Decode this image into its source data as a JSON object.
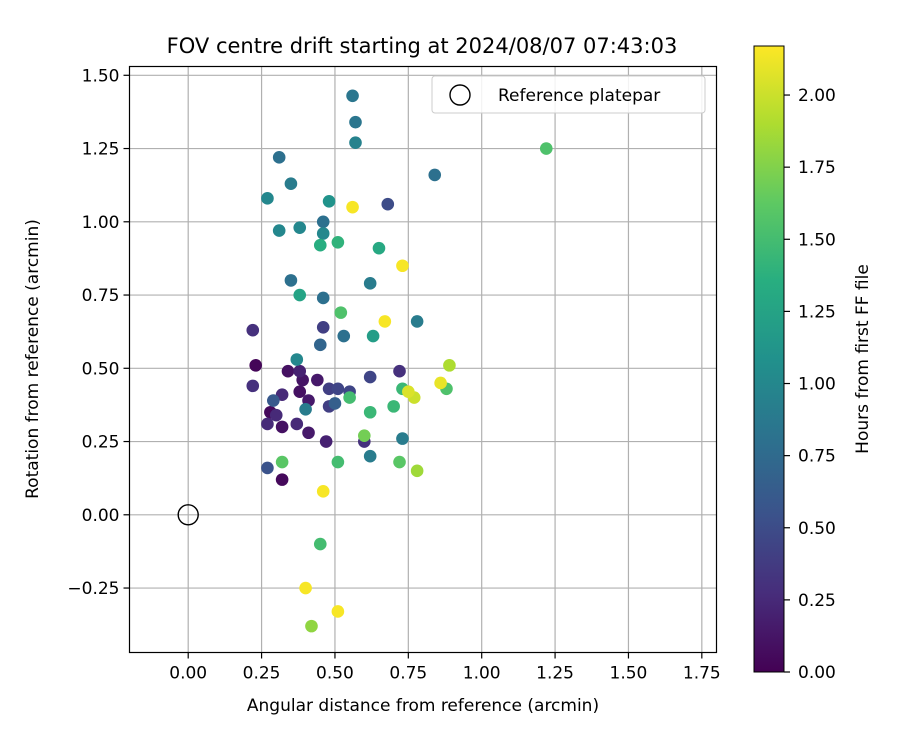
{
  "chart_data": {
    "type": "scatter",
    "title": "FOV centre drift starting at 2024/08/07 07:43:03",
    "xlabel": "Angular distance from reference (arcmin)",
    "ylabel": "Rotation from reference (arcmin)",
    "xlim": [
      -0.2,
      1.8
    ],
    "ylim": [
      -0.47,
      1.53
    ],
    "xticks": [
      "0.00",
      "0.25",
      "0.50",
      "0.75",
      "1.00",
      "1.25",
      "1.50",
      "1.75"
    ],
    "xtick_values": [
      0,
      0.25,
      0.5,
      0.75,
      1.0,
      1.25,
      1.5,
      1.75
    ],
    "yticks": [
      "−0.25",
      "0.00",
      "0.25",
      "0.50",
      "0.75",
      "1.00",
      "1.25",
      "1.50"
    ],
    "ytick_values": [
      -0.25,
      0,
      0.25,
      0.5,
      0.75,
      1.0,
      1.25,
      1.5
    ],
    "grid": true,
    "legend": {
      "position": "top-right",
      "entries": [
        "Reference platepar"
      ]
    },
    "reference_point": {
      "x": 0.0,
      "y": 0.0
    },
    "colorbar": {
      "label": "Hours from first FF file",
      "colormap": "viridis",
      "range": [
        0,
        2.17
      ],
      "ticks": [
        "0.00",
        "0.25",
        "0.50",
        "0.75",
        "1.00",
        "1.25",
        "1.50",
        "1.75",
        "2.00"
      ],
      "tick_values": [
        0,
        0.25,
        0.5,
        0.75,
        1.0,
        1.25,
        1.5,
        1.75,
        2.0
      ]
    },
    "points": [
      {
        "x": 0.23,
        "y": 0.51,
        "c": 0.03
      },
      {
        "x": 0.28,
        "y": 0.35,
        "c": 0.05
      },
      {
        "x": 0.32,
        "y": 0.12,
        "c": 0.05
      },
      {
        "x": 0.32,
        "y": 0.3,
        "c": 0.1
      },
      {
        "x": 0.34,
        "y": 0.49,
        "c": 0.1
      },
      {
        "x": 0.38,
        "y": 0.42,
        "c": 0.1
      },
      {
        "x": 0.39,
        "y": 0.46,
        "c": 0.12
      },
      {
        "x": 0.41,
        "y": 0.39,
        "c": 0.15
      },
      {
        "x": 0.41,
        "y": 0.28,
        "c": 0.15
      },
      {
        "x": 0.44,
        "y": 0.46,
        "c": 0.15
      },
      {
        "x": 0.38,
        "y": 0.49,
        "c": 0.2
      },
      {
        "x": 0.47,
        "y": 0.25,
        "c": 0.2
      },
      {
        "x": 0.27,
        "y": 0.31,
        "c": 0.25
      },
      {
        "x": 0.3,
        "y": 0.34,
        "c": 0.25
      },
      {
        "x": 0.32,
        "y": 0.41,
        "c": 0.25
      },
      {
        "x": 0.37,
        "y": 0.31,
        "c": 0.25
      },
      {
        "x": 0.22,
        "y": 0.63,
        "c": 0.3
      },
      {
        "x": 0.22,
        "y": 0.44,
        "c": 0.3
      },
      {
        "x": 0.6,
        "y": 0.25,
        "c": 0.3
      },
      {
        "x": 0.72,
        "y": 0.49,
        "c": 0.3
      },
      {
        "x": 0.46,
        "y": 0.64,
        "c": 0.4
      },
      {
        "x": 0.48,
        "y": 0.37,
        "c": 0.4
      },
      {
        "x": 0.48,
        "y": 0.43,
        "c": 0.4
      },
      {
        "x": 0.51,
        "y": 0.43,
        "c": 0.45
      },
      {
        "x": 0.55,
        "y": 0.42,
        "c": 0.45
      },
      {
        "x": 0.62,
        "y": 0.47,
        "c": 0.45
      },
      {
        "x": 0.68,
        "y": 1.06,
        "c": 0.5
      },
      {
        "x": 0.27,
        "y": 0.16,
        "c": 0.55
      },
      {
        "x": 0.29,
        "y": 0.39,
        "c": 0.6
      },
      {
        "x": 0.45,
        "y": 0.58,
        "c": 0.7
      },
      {
        "x": 0.5,
        "y": 0.38,
        "c": 0.65
      },
      {
        "x": 0.31,
        "y": 1.22,
        "c": 0.8
      },
      {
        "x": 0.46,
        "y": 1.0,
        "c": 0.8
      },
      {
        "x": 0.35,
        "y": 0.8,
        "c": 0.8
      },
      {
        "x": 0.46,
        "y": 0.74,
        "c": 0.8
      },
      {
        "x": 0.53,
        "y": 0.61,
        "c": 0.8
      },
      {
        "x": 0.84,
        "y": 1.16,
        "c": 0.8
      },
      {
        "x": 0.56,
        "y": 1.43,
        "c": 0.85
      },
      {
        "x": 0.57,
        "y": 1.34,
        "c": 0.85
      },
      {
        "x": 0.35,
        "y": 1.13,
        "c": 0.9
      },
      {
        "x": 0.4,
        "y": 0.36,
        "c": 0.9
      },
      {
        "x": 0.62,
        "y": 0.2,
        "c": 0.9
      },
      {
        "x": 0.73,
        "y": 0.26,
        "c": 0.9
      },
      {
        "x": 0.78,
        "y": 0.66,
        "c": 0.9
      },
      {
        "x": 0.62,
        "y": 0.79,
        "c": 0.9
      },
      {
        "x": 0.57,
        "y": 1.27,
        "c": 0.95
      },
      {
        "x": 0.27,
        "y": 1.08,
        "c": 1.0
      },
      {
        "x": 0.31,
        "y": 0.97,
        "c": 1.0
      },
      {
        "x": 0.38,
        "y": 0.98,
        "c": 1.0
      },
      {
        "x": 0.37,
        "y": 0.53,
        "c": 1.0
      },
      {
        "x": 0.46,
        "y": 0.96,
        "c": 1.0
      },
      {
        "x": 0.48,
        "y": 1.07,
        "c": 1.1
      },
      {
        "x": 0.63,
        "y": 0.61,
        "c": 1.2
      },
      {
        "x": 0.38,
        "y": 0.75,
        "c": 1.25
      },
      {
        "x": 0.65,
        "y": 0.91,
        "c": 1.3
      },
      {
        "x": 0.45,
        "y": 0.92,
        "c": 1.35
      },
      {
        "x": 0.51,
        "y": 0.93,
        "c": 1.4
      },
      {
        "x": 0.62,
        "y": 0.35,
        "c": 1.45
      },
      {
        "x": 0.7,
        "y": 0.37,
        "c": 1.45
      },
      {
        "x": 0.73,
        "y": 0.43,
        "c": 1.45
      },
      {
        "x": 0.51,
        "y": 0.18,
        "c": 1.5
      },
      {
        "x": 0.45,
        "y": -0.1,
        "c": 1.5
      },
      {
        "x": 0.55,
        "y": 0.4,
        "c": 1.5
      },
      {
        "x": 0.88,
        "y": 0.43,
        "c": 1.55
      },
      {
        "x": 1.22,
        "y": 1.25,
        "c": 1.55
      },
      {
        "x": 0.52,
        "y": 0.69,
        "c": 1.55
      },
      {
        "x": 0.32,
        "y": 0.18,
        "c": 1.6
      },
      {
        "x": 0.72,
        "y": 0.18,
        "c": 1.6
      },
      {
        "x": 0.6,
        "y": 0.27,
        "c": 1.7
      },
      {
        "x": 0.42,
        "y": -0.38,
        "c": 1.8
      },
      {
        "x": 0.78,
        "y": 0.15,
        "c": 1.85
      },
      {
        "x": 0.89,
        "y": 0.51,
        "c": 1.9
      },
      {
        "x": 0.77,
        "y": 0.4,
        "c": 2.0
      },
      {
        "x": 0.75,
        "y": 0.42,
        "c": 2.05
      },
      {
        "x": 0.86,
        "y": 0.45,
        "c": 2.1
      },
      {
        "x": 0.56,
        "y": 1.05,
        "c": 2.15
      },
      {
        "x": 0.67,
        "y": 0.66,
        "c": 2.15
      },
      {
        "x": 0.73,
        "y": 0.85,
        "c": 2.15
      },
      {
        "x": 0.46,
        "y": 0.08,
        "c": 2.15
      },
      {
        "x": 0.4,
        "y": -0.25,
        "c": 2.15
      },
      {
        "x": 0.51,
        "y": -0.33,
        "c": 2.15
      }
    ]
  }
}
